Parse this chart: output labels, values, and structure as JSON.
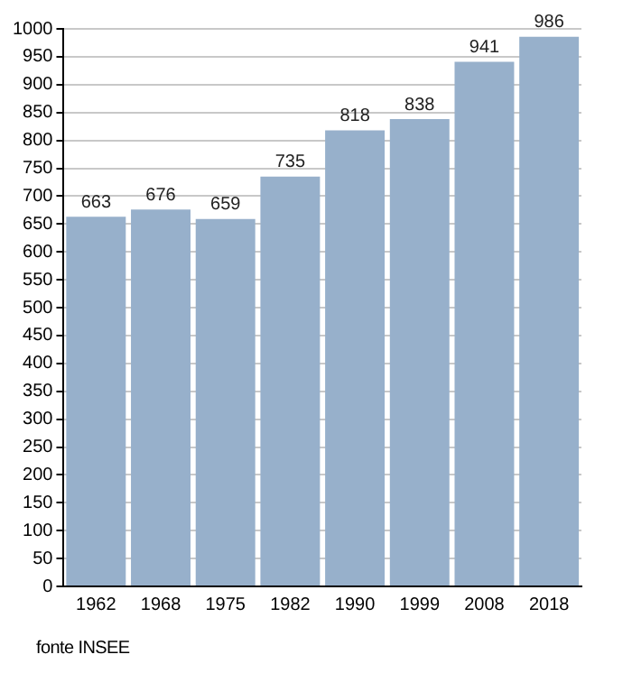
{
  "chart_data": {
    "type": "bar",
    "categories": [
      "1962",
      "1968",
      "1975",
      "1982",
      "1990",
      "1999",
      "2008",
      "2018"
    ],
    "values": [
      663,
      676,
      659,
      735,
      818,
      838,
      941,
      986
    ],
    "color": "#97b0cb",
    "ylim": [
      0,
      1000
    ],
    "yticks": [
      0,
      50,
      100,
      150,
      200,
      250,
      300,
      350,
      400,
      450,
      500,
      550,
      600,
      650,
      700,
      750,
      800,
      850,
      900,
      950,
      1000
    ],
    "grid": "y",
    "data_labels": true,
    "annotations": [
      "fonte INSEE"
    ]
  }
}
